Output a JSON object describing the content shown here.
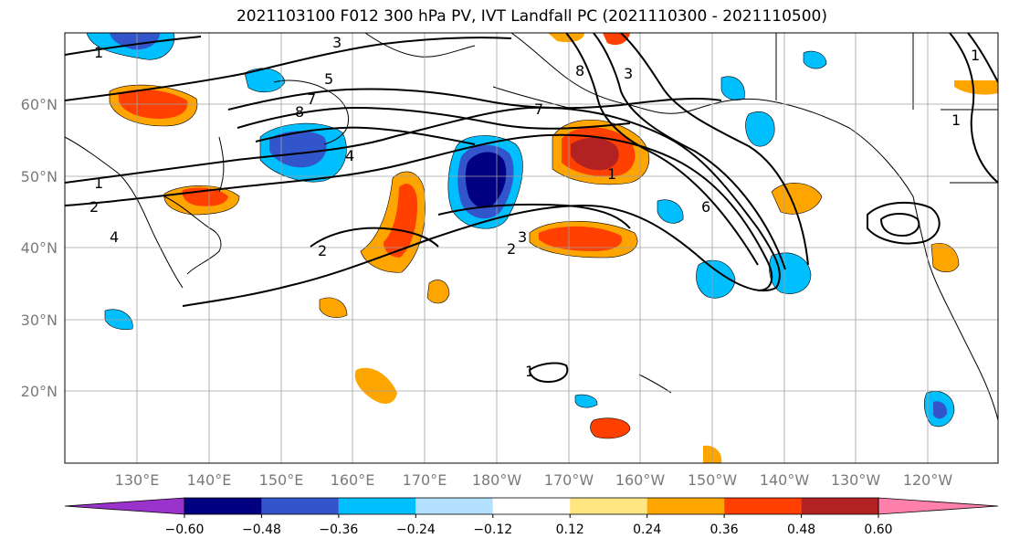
{
  "title": "2021103100 F012 300 hPa PV, IVT Landfall PC (2021110300 - 2021110500)",
  "colors": {
    "land_outline": "#000000",
    "grid": "#a0a0a0",
    "contour": "#000000"
  },
  "map": {
    "lat_labels": [
      "60°N",
      "50°N",
      "40°N",
      "30°N",
      "20°N"
    ],
    "lon_labels": [
      "130°E",
      "140°E",
      "150°E",
      "160°E",
      "170°E",
      "180°W",
      "170°W",
      "160°W",
      "150°W",
      "140°W",
      "130°W",
      "120°W"
    ],
    "contour_labels": [
      "1",
      "3",
      "5",
      "7",
      "8",
      "4",
      "1",
      "2",
      "4",
      "3",
      "2",
      "3",
      "1",
      "7",
      "6",
      "1",
      "8",
      "1",
      "2",
      "1"
    ]
  },
  "colorbar": {
    "colors": [
      "#9933cc",
      "#000080",
      "#3355cc",
      "#00bfff",
      "#b3e0ff",
      "#ffffff",
      "#ffe680",
      "#ffa500",
      "#ff4000",
      "#b22222",
      "#ff80aa"
    ],
    "ticks": [
      "−0.60",
      "−0.48",
      "−0.36",
      "−0.24",
      "−0.12",
      "0.12",
      "0.24",
      "0.36",
      "0.48",
      "0.60"
    ]
  }
}
